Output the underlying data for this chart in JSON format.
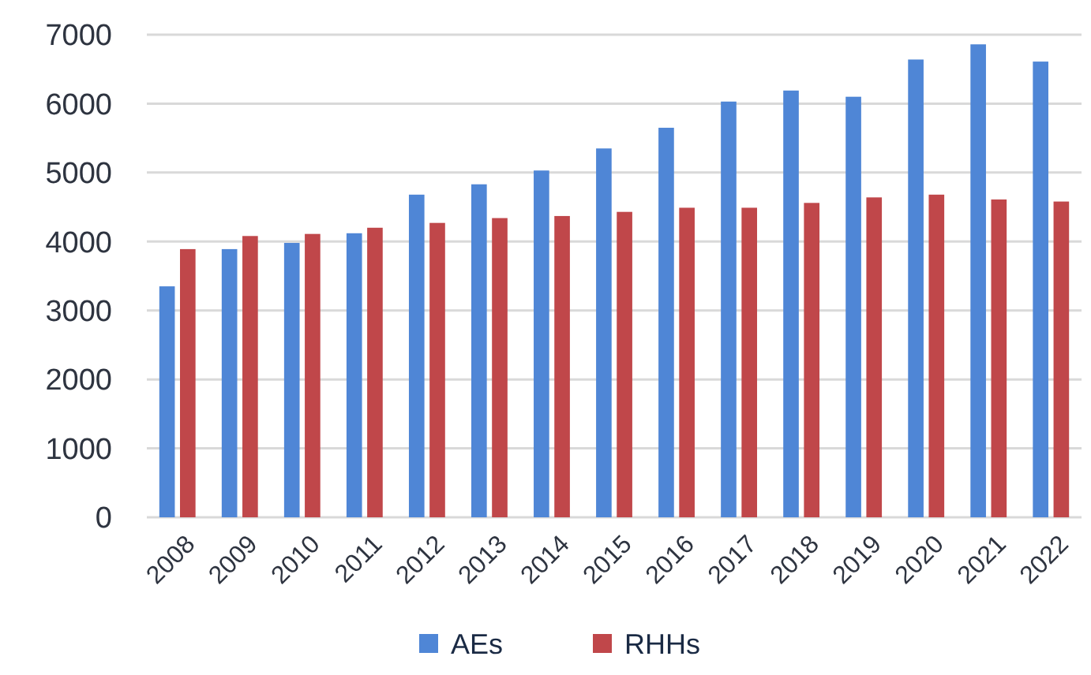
{
  "chart_data": {
    "type": "bar",
    "categories": [
      "2008",
      "2009",
      "2010",
      "2011",
      "2012",
      "2013",
      "2014",
      "2015",
      "2016",
      "2017",
      "2018",
      "2019",
      "2020",
      "2021",
      "2022"
    ],
    "series": [
      {
        "name": "AEs",
        "color": "#4f86d6",
        "values": [
          3350,
          3890,
          3980,
          4120,
          4680,
          4830,
          5030,
          5350,
          5650,
          6030,
          6190,
          6100,
          6640,
          6860,
          6610
        ]
      },
      {
        "name": "RHHs",
        "color": "#c0474a",
        "values": [
          3890,
          4080,
          4110,
          4200,
          4270,
          4340,
          4370,
          4430,
          4490,
          4490,
          4560,
          4640,
          4680,
          4610,
          4580
        ]
      }
    ],
    "ylim": [
      0,
      7000
    ],
    "yticks": [
      0,
      1000,
      2000,
      3000,
      4000,
      5000,
      6000,
      7000
    ],
    "grid": "y",
    "legend": "bottom"
  }
}
